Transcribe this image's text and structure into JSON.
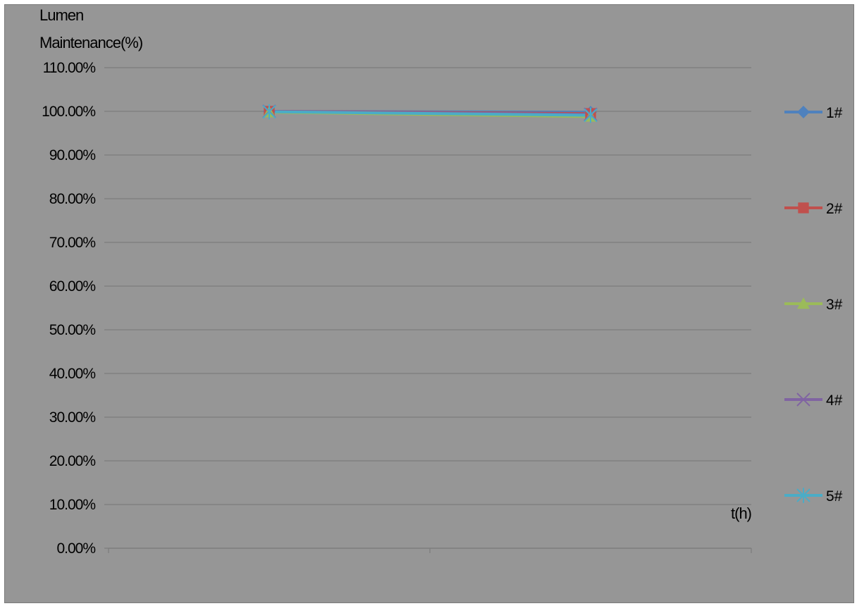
{
  "chart_data": {
    "type": "line",
    "ylabel_lines": [
      "Lumen",
      "Maintenance(%)"
    ],
    "xlabel": "t(h)",
    "ylim": [
      0,
      1.1
    ],
    "ytick_step": 0.1,
    "ytick_labels": [
      "0.00%",
      "10.00%",
      "20.00%",
      "30.00%",
      "40.00%",
      "50.00%",
      "60.00%",
      "70.00%",
      "80.00%",
      "90.00%",
      "100.00%",
      "110.00%"
    ],
    "categories": [
      "",
      ""
    ],
    "grid": true,
    "legend_position": "right",
    "background": "#969696",
    "series": [
      {
        "name": "1#",
        "color": "#4F81BD",
        "marker": "diamond",
        "values": [
          1.0,
          0.998
        ]
      },
      {
        "name": "2#",
        "color": "#C0504D",
        "marker": "square",
        "values": [
          1.0,
          0.995
        ]
      },
      {
        "name": "3#",
        "color": "#9BBB59",
        "marker": "triangle",
        "values": [
          0.998,
          0.988
        ]
      },
      {
        "name": "4#",
        "color": "#8064A2",
        "marker": "x",
        "values": [
          1.0,
          0.993
        ]
      },
      {
        "name": "5#",
        "color": "#4BACC6",
        "marker": "star",
        "values": [
          0.999,
          0.991
        ]
      }
    ]
  }
}
